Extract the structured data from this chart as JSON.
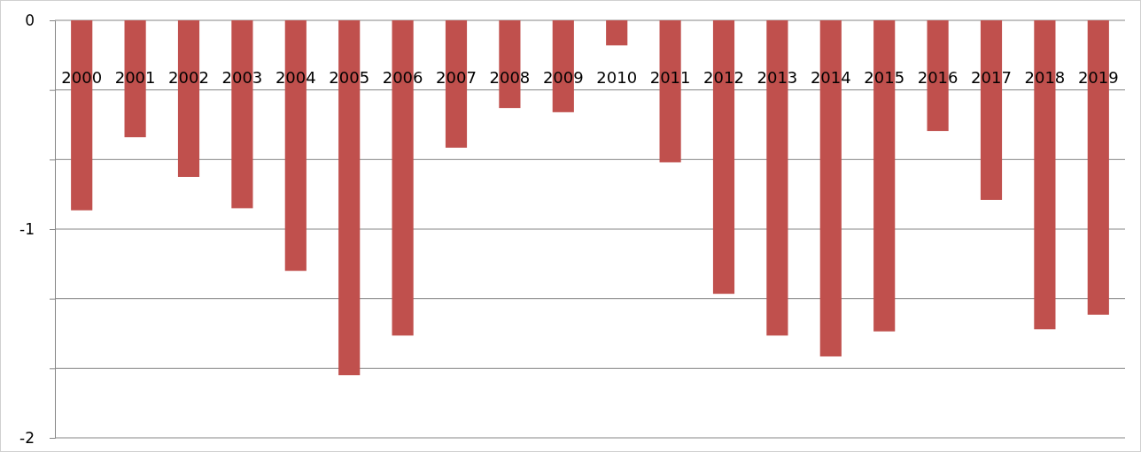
{
  "chart_data": {
    "type": "bar",
    "categories": [
      "2000",
      "2001",
      "2002",
      "2003",
      "2004",
      "2005",
      "2006",
      "2007",
      "2008",
      "2009",
      "2010",
      "2011",
      "2012",
      "2013",
      "2014",
      "2015",
      "2016",
      "2017",
      "2018",
      "2019"
    ],
    "series": [
      {
        "color": "#c0504d",
        "values": [
          -0.91,
          -0.56,
          -0.75,
          -0.9,
          -1.2,
          -1.7,
          -1.51,
          -0.61,
          -0.42,
          -0.44,
          -0.12,
          -0.68,
          -1.31,
          -1.51,
          -1.61,
          -1.49,
          -0.53,
          -0.86,
          -1.48,
          -1.41
        ]
      }
    ],
    "ylim": [
      -2,
      0
    ],
    "yticks": [
      0,
      {
        "value": -0.3333,
        "label": null
      },
      {
        "value": -0.6667,
        "label": null
      },
      -1,
      {
        "value": -1.3333,
        "label": null
      },
      {
        "value": -1.6667,
        "label": null
      },
      -2
    ],
    "grid": "y"
  }
}
